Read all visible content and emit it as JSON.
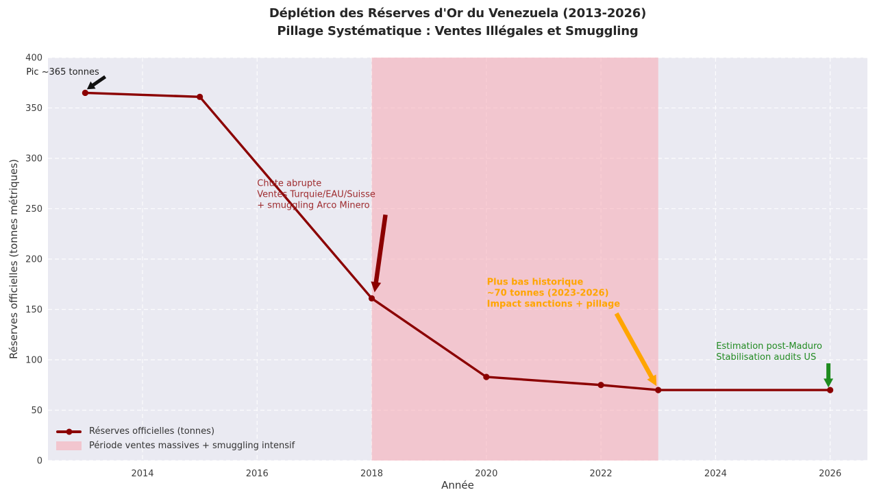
{
  "chart_data": {
    "type": "line",
    "title": "Déplétion des Réserves d'Or du Venezuela (2013-2026)",
    "subtitle": "Pillage Systématique : Ventes Illégales et Smuggling",
    "xlabel": "Année",
    "ylabel": "Réserves officielles (tonnes métriques)",
    "xlim": [
      2012.35,
      2026.65
    ],
    "ylim": [
      0,
      400
    ],
    "xticks": [
      2014,
      2016,
      2018,
      2020,
      2022,
      2024,
      2026
    ],
    "yticks": [
      0,
      50,
      100,
      150,
      200,
      250,
      300,
      350,
      400
    ],
    "grid": "white dashed",
    "plot_bg": "#eaeaf2",
    "series": [
      {
        "name": "Réserves officielles (tonnes)",
        "color": "#8B0000",
        "x": [
          2013,
          2015,
          2018,
          2020,
          2022,
          2023,
          2026
        ],
        "y": [
          365,
          361,
          161,
          83,
          75,
          70,
          70
        ]
      }
    ],
    "band": {
      "x0": 2018,
      "x1": 2023,
      "color": "#F8A8B2",
      "alpha": 0.55,
      "label": "Période ventes massives + smuggling intensif"
    },
    "legend": {
      "position": "lower left",
      "entries": [
        {
          "type": "line",
          "label": "Réserves officielles (tonnes)",
          "color": "#8B0000"
        },
        {
          "type": "patch",
          "label": "Période ventes massives + smuggling intensif",
          "color": "#F1C4CB"
        }
      ]
    },
    "annotations": [
      {
        "name": "peak",
        "lines": [
          "Pic ~365 tonnes"
        ],
        "color": "#1f1f1f",
        "bold": false,
        "text_at": [
          2011.97,
          390.5
        ],
        "arrow": {
          "from": [
            2013.35,
            381
          ],
          "to": [
            2013.03,
            368.5
          ],
          "color": "#111111",
          "w": 5,
          "hl": 11,
          "hw": 13
        }
      },
      {
        "name": "crash",
        "lines": [
          "Chute abrupte",
          "Ventes Turquie/EAU/Suisse",
          "+ smuggling Arco Minero"
        ],
        "color": "#9e2b2e",
        "bold": false,
        "text_at": [
          2016.0,
          280
        ],
        "arrow": {
          "from": [
            2018.24,
            244
          ],
          "to": [
            2018.05,
            167
          ],
          "color": "#8B0000",
          "w": 6.5,
          "hl": 15,
          "hw": 15
        }
      },
      {
        "name": "historic-low",
        "lines": [
          "Plus bas historique",
          "~70 tonnes (2023-2026)",
          "Impact sanctions + pillage"
        ],
        "color": "#FFA500",
        "bold": true,
        "text_at": [
          2020.01,
          182
        ],
        "arrow": {
          "from": [
            2022.27,
            146
          ],
          "to": [
            2022.97,
            74
          ],
          "color": "#FFA500",
          "w": 6.5,
          "hl": 15,
          "hw": 15
        }
      },
      {
        "name": "post-maduro",
        "lines": [
          "Estimation post-Maduro",
          "Stabilisation audits US"
        ],
        "color": "#228B22",
        "bold": false,
        "text_at": [
          2024.01,
          118.5
        ],
        "arrow": {
          "from": [
            2025.97,
            96.5
          ],
          "to": [
            2025.97,
            72.5
          ],
          "color": "#1e8b1e",
          "w": 6,
          "hl": 13,
          "hw": 14
        }
      }
    ]
  }
}
